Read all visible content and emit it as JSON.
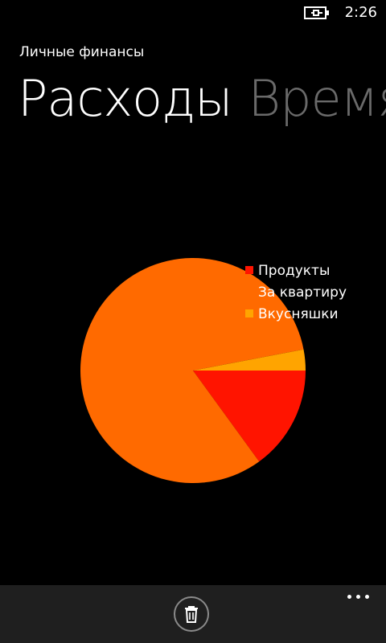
{
  "status_bar": {
    "time": "2:26",
    "battery_icon": "battery-charging-icon"
  },
  "app": {
    "title": "Личные финансы"
  },
  "pivot": {
    "headers": [
      {
        "label": "Расходы",
        "active": true
      },
      {
        "label": "Время",
        "active": false
      }
    ]
  },
  "chart_data": {
    "type": "pie",
    "title": "",
    "slices": [
      {
        "label": "Продукты",
        "value": 15,
        "color": "#ff1400"
      },
      {
        "label": "За квартиру",
        "value": 82,
        "color": "#ff6a00"
      },
      {
        "label": "Вкусняшки",
        "value": 3,
        "color": "#ffa400"
      }
    ],
    "legend_position": "top-right"
  },
  "app_bar": {
    "delete_icon": "trash-icon",
    "more_icon": "ellipsis-icon"
  },
  "colors": {
    "background": "#000000",
    "app_bar": "#1f1f1f",
    "inactive_header": "#6a6a6a"
  }
}
